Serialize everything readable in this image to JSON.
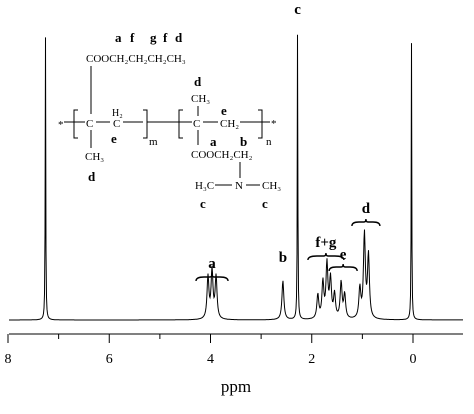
{
  "chart_data": {
    "type": "line",
    "title": "",
    "xlabel": "ppm",
    "ylabel": "",
    "xlim": [
      8,
      -1
    ],
    "x_reversed": true,
    "x_ticks": [
      8,
      6,
      4,
      2,
      0
    ],
    "x_tick_labels": [
      "8",
      "6",
      "4",
      "2",
      "0"
    ],
    "grid": false,
    "legend": "none",
    "series": [
      {
        "peaks": [
          {
            "ppm": 7.26,
            "height": 0.95
          },
          {
            "ppm": 4.05,
            "height": 0.14
          },
          {
            "ppm": 3.97,
            "height": 0.16
          },
          {
            "ppm": 3.89,
            "height": 0.14
          },
          {
            "ppm": 2.57,
            "height": 0.13
          },
          {
            "ppm": 2.28,
            "height": 1.0
          },
          {
            "ppm": 1.88,
            "height": 0.08
          },
          {
            "ppm": 1.78,
            "height": 0.12
          },
          {
            "ppm": 1.7,
            "height": 0.18
          },
          {
            "ppm": 1.63,
            "height": 0.13
          },
          {
            "ppm": 1.55,
            "height": 0.08
          },
          {
            "ppm": 1.42,
            "height": 0.12
          },
          {
            "ppm": 1.35,
            "height": 0.08
          },
          {
            "ppm": 1.05,
            "height": 0.1
          },
          {
            "ppm": 0.96,
            "height": 0.28
          },
          {
            "ppm": 0.88,
            "height": 0.21
          },
          {
            "ppm": 0.03,
            "height": 0.92
          }
        ]
      }
    ],
    "peak_labels": [
      {
        "label": "a",
        "ppm": 3.97,
        "brace": true
      },
      {
        "label": "b",
        "ppm": 2.57,
        "brace": false
      },
      {
        "label": "c",
        "ppm": 2.28,
        "brace": false
      },
      {
        "label": "f+g",
        "ppm": 1.72,
        "brace": true
      },
      {
        "label": "e",
        "ppm": 1.38,
        "brace": true
      },
      {
        "label": "d",
        "ppm": 0.93,
        "brace": true
      }
    ]
  },
  "structure": {
    "labels_top": [
      "a",
      "f",
      "g",
      "f",
      "d"
    ],
    "ester_chain": "COOCH₂CH₂CH₂CH₃",
    "left_C": "C",
    "left_H2": "H₂",
    "left_C2": "C",
    "label_e_left": "e",
    "left_methyl": "CH₃",
    "label_d_left": "d",
    "subscript_m": "m",
    "subscript_n": "n",
    "star": "*",
    "right_label_d": "d",
    "right_methyl": "CH₃",
    "right_C": "C",
    "right_CH2": "CH₂",
    "label_e_right": "e",
    "labels_ab": [
      "a",
      "b"
    ],
    "amino_ester": "COOCH₂CH₂",
    "N": "N",
    "H3C": "H₃C",
    "CH3": "CH₃",
    "labels_c": [
      "c",
      "c"
    ]
  }
}
